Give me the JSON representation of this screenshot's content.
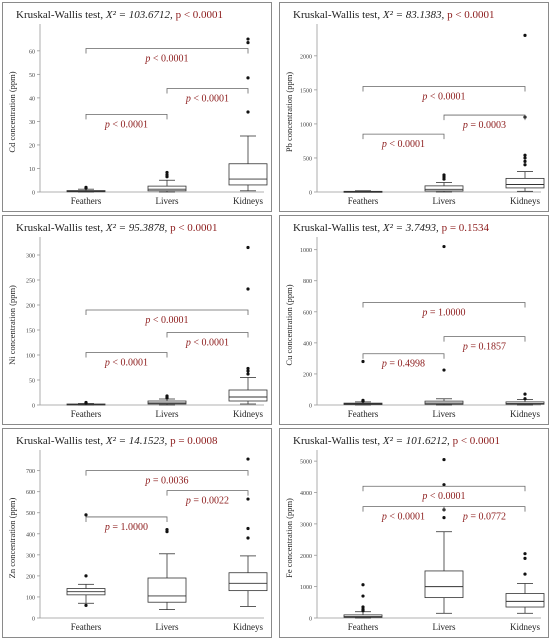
{
  "chart_data": [
    {
      "type": "boxplot",
      "title_test": "Kruskal-Wallis test, ",
      "title_stat": "X² = 103.6712, ",
      "title_p": "p < 0.0001",
      "ylabel": "Cd concentration (ppm)",
      "categories": [
        "Feathers",
        "Livers",
        "Kidneys"
      ],
      "ylim": [
        0,
        68
      ],
      "yticks": [
        0,
        10,
        20,
        30,
        40,
        50,
        60
      ],
      "boxes": [
        {
          "min": 0,
          "q1": 0.1,
          "median": 0.3,
          "q3": 0.6,
          "max": 1.2,
          "outliers": [
            1.6,
            2.0
          ]
        },
        {
          "min": 0,
          "q1": 0.5,
          "median": 1.2,
          "q3": 2.5,
          "max": 5.0,
          "outliers": [
            6.5,
            7.3,
            8.3
          ]
        },
        {
          "min": 0.5,
          "q1": 3.0,
          "median": 5.5,
          "q3": 12.0,
          "max": 23.8,
          "outliers": [
            34,
            48.5,
            63.5,
            65
          ]
        }
      ],
      "comparisons": [
        {
          "from": 0,
          "to": 2,
          "y": 61,
          "label": "p < 0.0001"
        },
        {
          "from": 0,
          "to": 1,
          "y": 33,
          "label": "p < 0.0001"
        },
        {
          "from": 1,
          "to": 2,
          "y": 44,
          "label": "p < 0.0001"
        }
      ]
    },
    {
      "type": "boxplot",
      "title_test": "Kruskal-Wallis test, ",
      "title_stat": "X² = 83.1383, ",
      "title_p": "p < 0.0001",
      "ylabel": "Pb concentration (ppm)",
      "categories": [
        "Feathers",
        "Livers",
        "Kidneys"
      ],
      "ylim": [
        0,
        2350
      ],
      "yticks": [
        0,
        500,
        1000,
        1500,
        2000
      ],
      "boxes": [
        {
          "min": 0,
          "q1": 2,
          "median": 5,
          "q3": 10,
          "max": 18,
          "outliers": []
        },
        {
          "min": 0,
          "q1": 15,
          "median": 40,
          "q3": 90,
          "max": 140,
          "outliers": [
            190,
            220,
            250
          ]
        },
        {
          "min": 10,
          "q1": 60,
          "median": 110,
          "q3": 200,
          "max": 300,
          "outliers": [
            400,
            450,
            500,
            540,
            1100,
            2300
          ]
        }
      ],
      "comparisons": [
        {
          "from": 0,
          "to": 2,
          "y": 1550,
          "label": "p < 0.0001"
        },
        {
          "from": 0,
          "to": 1,
          "y": 850,
          "label": "p < 0.0001"
        },
        {
          "from": 1,
          "to": 2,
          "y": 1130,
          "label": "p = 0.0003"
        }
      ]
    },
    {
      "type": "boxplot",
      "title_test": "Kruskal-Wallis test, ",
      "title_stat": "X² = 95.3878, ",
      "title_p": "p < 0.0001",
      "ylabel": "Ni concentration (ppm)",
      "categories": [
        "Feathers",
        "Livers",
        "Kidneys"
      ],
      "ylim": [
        0,
        320
      ],
      "yticks": [
        0,
        50,
        100,
        150,
        200,
        250,
        300
      ],
      "boxes": [
        {
          "min": 0,
          "q1": 0.5,
          "median": 1,
          "q3": 2,
          "max": 3,
          "outliers": [
            4,
            5
          ]
        },
        {
          "min": 0,
          "q1": 2,
          "median": 4,
          "q3": 8,
          "max": 12,
          "outliers": [
            14,
            16,
            18
          ]
        },
        {
          "min": 2,
          "q1": 8,
          "median": 16,
          "q3": 30,
          "max": 55,
          "outliers": [
            62,
            68,
            73,
            232,
            315
          ]
        }
      ],
      "comparisons": [
        {
          "from": 0,
          "to": 2,
          "y": 190,
          "label": "p < 0.0001"
        },
        {
          "from": 0,
          "to": 1,
          "y": 105,
          "label": "p < 0.0001"
        },
        {
          "from": 1,
          "to": 2,
          "y": 145,
          "label": "p < 0.0001"
        }
      ]
    },
    {
      "type": "boxplot",
      "title_test": "Kruskal-Wallis test, ",
      "title_stat": "X² = 3.7493, ",
      "title_p": "p = 0.1534",
      "ylabel": "Cu concentration (ppm)",
      "categories": [
        "Feathers",
        "Livers",
        "Kidneys"
      ],
      "ylim": [
        0,
        1030
      ],
      "yticks": [
        0,
        200,
        400,
        600,
        800,
        1000
      ],
      "boxes": [
        {
          "min": 0,
          "q1": 3,
          "median": 7,
          "q3": 12,
          "max": 20,
          "outliers": [
            25,
            30,
            280
          ]
        },
        {
          "min": 0,
          "q1": 5,
          "median": 12,
          "q3": 25,
          "max": 40,
          "outliers": [
            225,
            1020
          ]
        },
        {
          "min": 0,
          "q1": 5,
          "median": 10,
          "q3": 20,
          "max": 35,
          "outliers": [
            40,
            70
          ]
        }
      ],
      "comparisons": [
        {
          "from": 0,
          "to": 2,
          "y": 660,
          "label": "p = 1.0000"
        },
        {
          "from": 0,
          "to": 1,
          "y": 330,
          "label": "p = 0.4998"
        },
        {
          "from": 1,
          "to": 2,
          "y": 440,
          "label": "p = 0.1857"
        }
      ]
    },
    {
      "type": "boxplot",
      "title_test": "Kruskal-Wallis test, ",
      "title_stat": "X² = 14.1523, ",
      "title_p": "p = 0.0008",
      "ylabel": "Zn concentration (ppm)",
      "categories": [
        "Feathers",
        "Livers",
        "Kidneys"
      ],
      "ylim": [
        0,
        760
      ],
      "yticks": [
        0,
        100,
        200,
        300,
        400,
        500,
        600,
        700
      ],
      "boxes": [
        {
          "min": 70,
          "q1": 110,
          "median": 125,
          "q3": 140,
          "max": 160,
          "outliers": [
            60,
            200,
            490
          ]
        },
        {
          "min": 40,
          "q1": 75,
          "median": 105,
          "q3": 190,
          "max": 305,
          "outliers": [
            410,
            420
          ]
        },
        {
          "min": 55,
          "q1": 130,
          "median": 165,
          "q3": 215,
          "max": 295,
          "outliers": [
            380,
            425,
            565,
            755
          ]
        }
      ],
      "comparisons": [
        {
          "from": 0,
          "to": 2,
          "y": 700,
          "label": "p = 0.0036"
        },
        {
          "from": 0,
          "to": 1,
          "y": 480,
          "label": "p = 1.0000"
        },
        {
          "from": 1,
          "to": 2,
          "y": 605,
          "label": "p = 0.0022"
        }
      ]
    },
    {
      "type": "boxplot",
      "title_test": "Kruskal-Wallis test, ",
      "title_stat": "X² = 101.6212, ",
      "title_p": "p < 0.0001",
      "ylabel": "Fe concentration (ppm)",
      "categories": [
        "Feathers",
        "Livers",
        "Kidneys"
      ],
      "ylim": [
        0,
        5100
      ],
      "yticks": [
        0,
        1000,
        2000,
        3000,
        4000,
        5000
      ],
      "boxes": [
        {
          "min": 0,
          "q1": 20,
          "median": 45,
          "q3": 100,
          "max": 200,
          "outliers": [
            230,
            280,
            350,
            700,
            1060
          ]
        },
        {
          "min": 150,
          "q1": 650,
          "median": 1000,
          "q3": 1500,
          "max": 2750,
          "outliers": [
            3200,
            3450,
            4250,
            5050
          ]
        },
        {
          "min": 150,
          "q1": 350,
          "median": 530,
          "q3": 780,
          "max": 1100,
          "outliers": [
            1400,
            1900,
            2050
          ]
        }
      ],
      "comparisons": [
        {
          "from": 0,
          "to": 2,
          "y": 4200,
          "label": "p < 0.0001"
        },
        {
          "from": 0,
          "to": 1,
          "y": 3550,
          "label": "p < 0.0001"
        },
        {
          "from": 1,
          "to": 2,
          "y": 3550,
          "label": "p = 0.0772"
        }
      ]
    }
  ],
  "colors": {
    "p_label": "#8b1a1a",
    "ink": "#222222",
    "bracket": "#666666",
    "frame": "#8a8a8a"
  }
}
